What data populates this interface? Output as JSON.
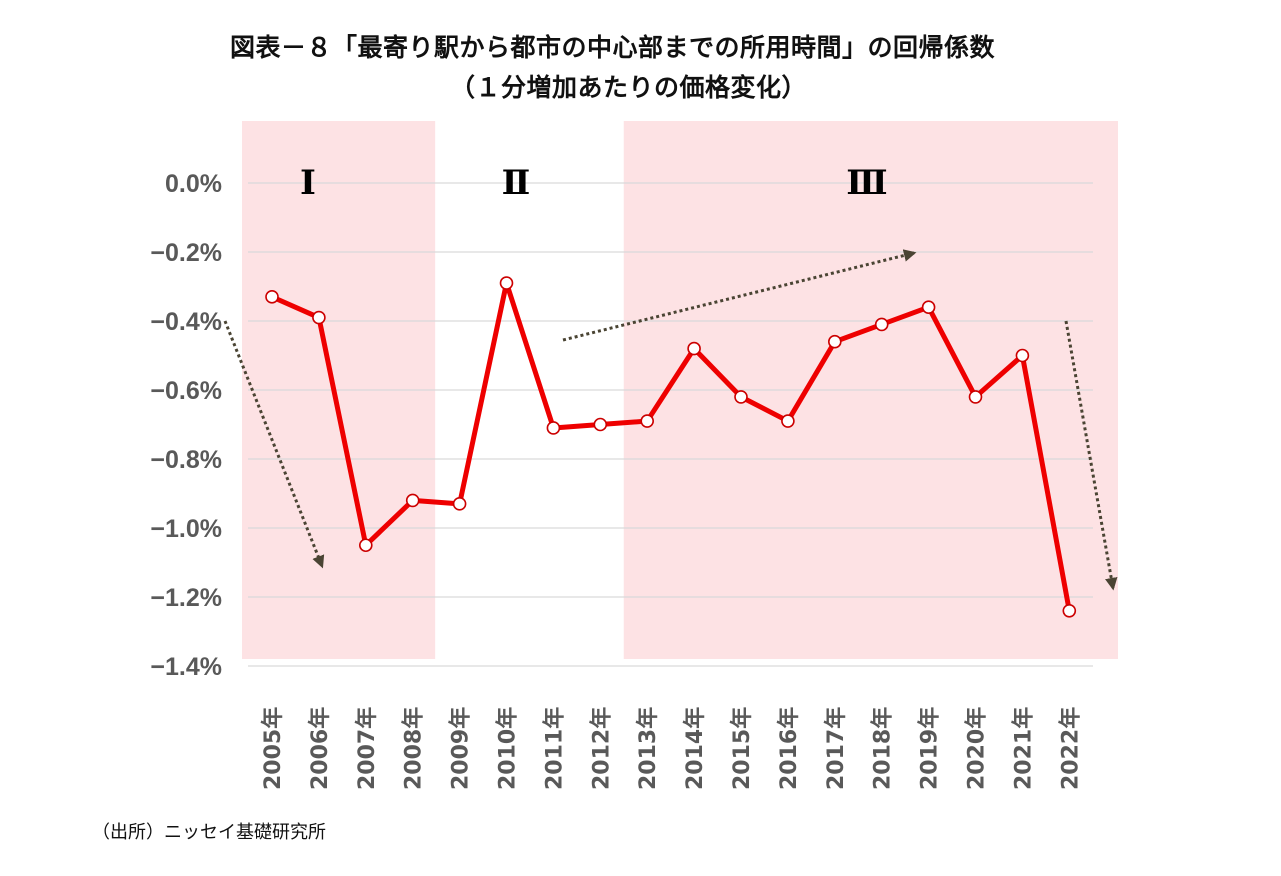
{
  "title": {
    "line1": "図表－８「最寄り駅から都市の中心部までの所用時間」の回帰係数",
    "line2": "（１分増加あたりの価格変化）"
  },
  "source": "（出所）ニッセイ基礎研究所",
  "colors": {
    "line": "#ee0000",
    "marker_fill": "#ffffff",
    "marker_stroke": "#cc0000",
    "region_fill": "#fde2e4",
    "grid": "#d9d9d9",
    "arrow": "#4a4433",
    "tick_text": "#595959"
  },
  "chart_data": {
    "type": "line",
    "title": "図表－８「最寄り駅から都市の中心部までの所用時間」の回帰係数（１分増加あたりの価格変化）",
    "xlabel": "",
    "ylabel": "",
    "categories": [
      "2005年",
      "2006年",
      "2007年",
      "2008年",
      "2009年",
      "2010年",
      "2011年",
      "2012年",
      "2013年",
      "2014年",
      "2015年",
      "2016年",
      "2017年",
      "2018年",
      "2019年",
      "2020年",
      "2021年",
      "2022年"
    ],
    "series": [
      {
        "name": "回帰係数",
        "values": [
          -0.33,
          -0.39,
          -1.05,
          -0.92,
          -0.93,
          -0.29,
          -0.71,
          -0.7,
          -0.69,
          -0.48,
          -0.62,
          -0.69,
          -0.46,
          -0.41,
          -0.36,
          -0.62,
          -0.5,
          -1.24
        ]
      }
    ],
    "ylim": [
      -1.4,
      0.0
    ],
    "yticks": [
      0.0,
      -0.2,
      -0.4,
      -0.6,
      -0.8,
      -1.0,
      -1.2,
      -1.4
    ],
    "ytick_labels": [
      "0.0%",
      "−0.2%",
      "−0.4%",
      "−0.6%",
      "−0.8%",
      "−1.0%",
      "−1.2%",
      "−1.4%"
    ],
    "grid": true,
    "legend": null,
    "regions": [
      {
        "label": "Ⅰ",
        "from": "2005年",
        "to": "2008年",
        "shaded": true
      },
      {
        "label": "Ⅱ",
        "from": "2009年",
        "to": "2012年",
        "shaded": false
      },
      {
        "label": "Ⅲ",
        "from": "2013年",
        "to": "2022年",
        "shaded": true
      }
    ],
    "annotations": [
      {
        "type": "trend-arrow",
        "region": "Ⅰ",
        "direction": "down"
      },
      {
        "type": "trend-arrow",
        "region": "Ⅱ-Ⅲ",
        "direction": "up"
      },
      {
        "type": "trend-arrow",
        "region": "Ⅲ (2022)",
        "direction": "down"
      }
    ]
  }
}
